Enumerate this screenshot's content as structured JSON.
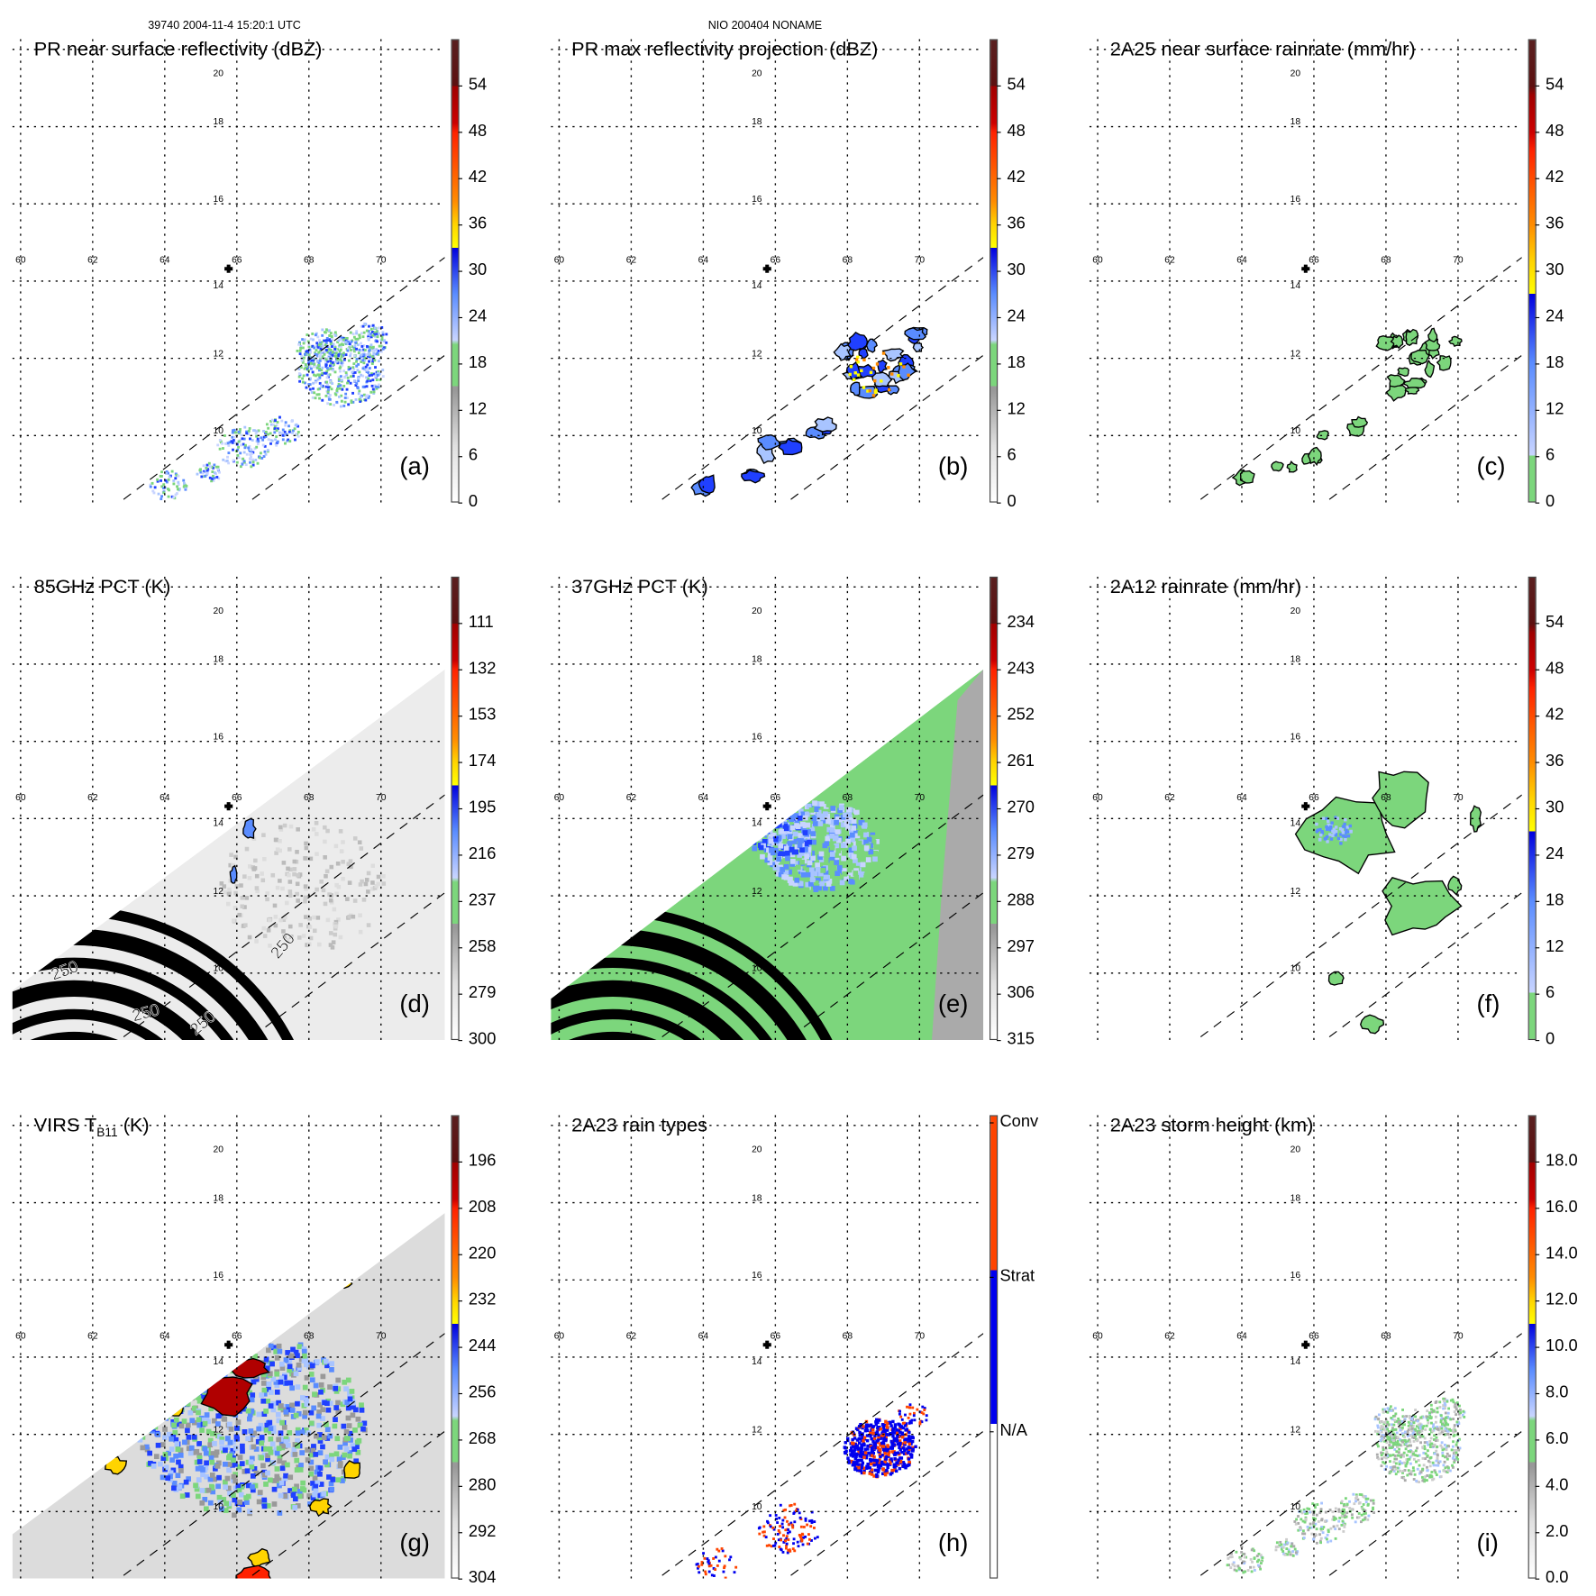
{
  "header": {
    "left": "39740 2004-11-4 15:20:1 UTC",
    "center": "NIO 200404 NONAME"
  },
  "chart_data": {
    "type": "heatmap",
    "axes": {
      "lon_ticks": [
        "60",
        "62",
        "64",
        "66",
        "68",
        "70"
      ],
      "lat_ticks": [
        "20",
        "18",
        "16",
        "14",
        "12",
        "10"
      ]
    },
    "swath_contour_labels": [
      "250",
      "250",
      "250",
      "250"
    ],
    "panels": [
      {
        "id": "a",
        "title": "PR near surface reflectivity (dBZ)",
        "letter": "(a)",
        "colorbar": [
          "54",
          "48",
          "42",
          "36",
          "30",
          "24",
          "18",
          "12",
          "6",
          "0"
        ],
        "palette": "refl",
        "kind": "pr"
      },
      {
        "id": "b",
        "title": "PR max reflectivity projection (dBZ)",
        "letter": "(b)",
        "colorbar": [
          "54",
          "48",
          "42",
          "36",
          "30",
          "24",
          "18",
          "12",
          "6",
          "0"
        ],
        "palette": "refl",
        "kind": "prmax"
      },
      {
        "id": "c",
        "title": "2A25 near surface rainrate (mm/hr)",
        "letter": "(c)",
        "colorbar": [
          "54",
          "48",
          "42",
          "36",
          "30",
          "24",
          "18",
          "12",
          "6",
          "0"
        ],
        "palette": "rain",
        "kind": "rain25"
      },
      {
        "id": "d",
        "title": "85GHz PCT (K)",
        "letter": "(d)",
        "colorbar": [
          "111",
          "132",
          "153",
          "174",
          "195",
          "216",
          "237",
          "258",
          "279",
          "300"
        ],
        "palette": "refl",
        "kind": "pct85"
      },
      {
        "id": "e",
        "title": "37GHz PCT (K)",
        "letter": "(e)",
        "colorbar": [
          "234",
          "243",
          "252",
          "261",
          "270",
          "279",
          "288",
          "297",
          "306",
          "315"
        ],
        "palette": "refl",
        "kind": "pct37"
      },
      {
        "id": "f",
        "title": "2A12 rainrate (mm/hr)",
        "letter": "(f)",
        "colorbar": [
          "54",
          "48",
          "42",
          "36",
          "30",
          "24",
          "18",
          "12",
          "6",
          "0"
        ],
        "palette": "rain",
        "kind": "rain12"
      },
      {
        "id": "g",
        "title": "VIRS T",
        "title_sub": "B11",
        "title_suffix": " (K)",
        "letter": "(g)",
        "colorbar": [
          "196",
          "208",
          "220",
          "232",
          "244",
          "256",
          "268",
          "280",
          "292",
          "304"
        ],
        "palette": "refl",
        "kind": "virs"
      },
      {
        "id": "h",
        "title": "2A23 rain types",
        "letter": "(h)",
        "colorbar": [
          "Conv",
          "Strat",
          "N/A"
        ],
        "palette": "types",
        "kind": "types"
      },
      {
        "id": "i",
        "title": "2A23 storm height (km)",
        "letter": "(i)",
        "colorbar": [
          "18.0",
          "16.0",
          "14.0",
          "12.0",
          "10.0",
          "8.0",
          "6.0",
          "4.0",
          "2.0",
          "0.0"
        ],
        "palette": "refl",
        "kind": "height"
      }
    ]
  }
}
